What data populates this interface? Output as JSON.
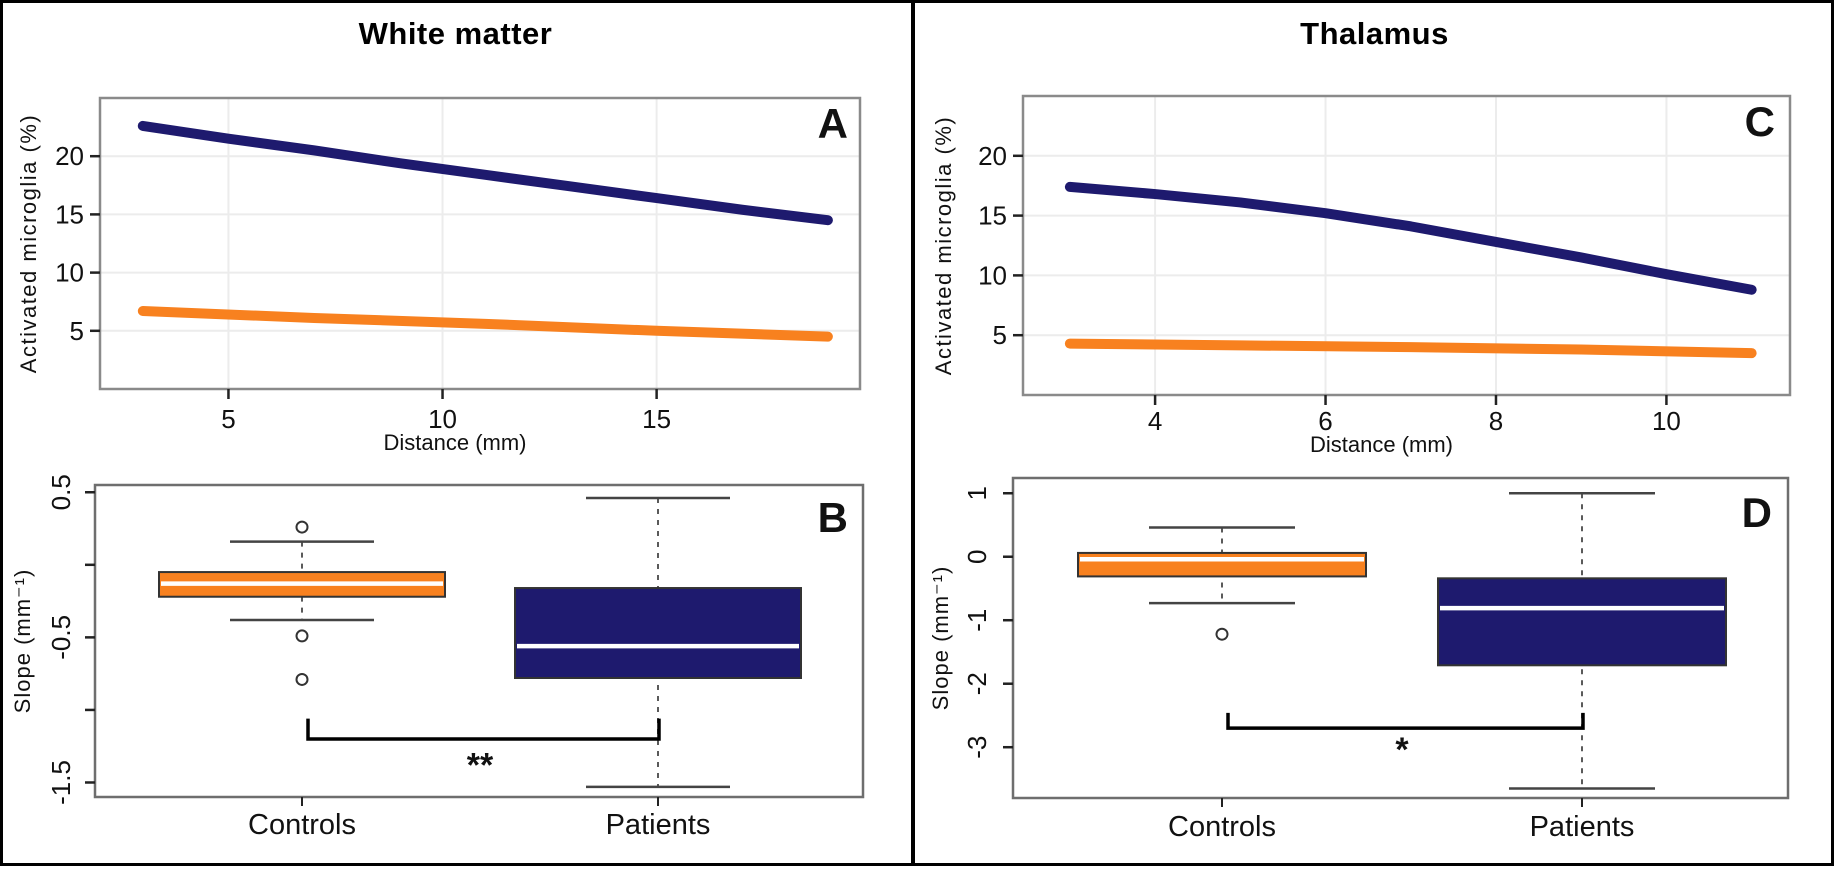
{
  "figure": {
    "columns": [
      {
        "title": "White matter"
      },
      {
        "title": "Thalamus"
      }
    ]
  },
  "chart_data": [
    {
      "id": "A",
      "type": "line",
      "panel_label": "A",
      "column_title": "White matter",
      "xlabel": "Distance (mm)",
      "ylabel": "Activated microglia (%)",
      "xlim": [
        2.0,
        19.75
      ],
      "ylim": [
        0,
        25
      ],
      "xticks": [
        5,
        10,
        15
      ],
      "yticks": [
        5,
        10,
        15,
        20
      ],
      "grid": true,
      "series": [
        {
          "name": "Patients",
          "color": "#1E1A6E",
          "points": [
            [
              3,
              22.6
            ],
            [
              5,
              21.5
            ],
            [
              7,
              20.5
            ],
            [
              9,
              19.4
            ],
            [
              11,
              18.4
            ],
            [
              13,
              17.4
            ],
            [
              15,
              16.4
            ],
            [
              17,
              15.4
            ],
            [
              19,
              14.5
            ]
          ]
        },
        {
          "name": "Controls",
          "color": "#F8811F",
          "points": [
            [
              3,
              6.7
            ],
            [
              7,
              6.1
            ],
            [
              11,
              5.6
            ],
            [
              15,
              5.0
            ],
            [
              19,
              4.5
            ]
          ]
        }
      ]
    },
    {
      "id": "B",
      "type": "box",
      "panel_label": "B",
      "ylabel": "Slope (mm⁻¹)",
      "ylim": [
        -1.6,
        0.55
      ],
      "yticks": [
        {
          "v": 0.5,
          "label": "0.5"
        },
        {
          "v": 0,
          "label": ""
        },
        {
          "v": -0.5,
          "label": "-0.5"
        },
        {
          "v": -1,
          "label": ""
        },
        {
          "v": -1.5,
          "label": "-1.5"
        }
      ],
      "categories": [
        "Controls",
        "Patients"
      ],
      "boxes": [
        {
          "name": "Controls",
          "color": "#F8811F",
          "whisker_low": -0.38,
          "q1": -0.22,
          "median": -0.13,
          "q3": -0.05,
          "whisker_high": 0.16,
          "outliers": [
            0.26,
            -0.49,
            -0.79
          ]
        },
        {
          "name": "Patients",
          "color": "#1E1A6E",
          "whisker_low": -1.53,
          "q1": -0.78,
          "median": -0.56,
          "q3": -0.16,
          "whisker_high": 0.46,
          "outliers": []
        }
      ],
      "significance": {
        "label": "**",
        "bracket_y": -1.2,
        "bracket_tick_y": -1.06,
        "label_y": -1.46
      }
    },
    {
      "id": "C",
      "type": "line",
      "panel_label": "C",
      "column_title": "Thalamus",
      "xlabel": "Distance (mm)",
      "ylabel": "Activated microglia (%)",
      "xlim": [
        2.45,
        11.45
      ],
      "ylim": [
        0,
        25
      ],
      "xticks": [
        4,
        6,
        8,
        10
      ],
      "yticks": [
        5,
        10,
        15,
        20
      ],
      "grid": true,
      "series": [
        {
          "name": "Patients",
          "color": "#1E1A6E",
          "points": [
            [
              3,
              17.4
            ],
            [
              4,
              16.8
            ],
            [
              5,
              16.1
            ],
            [
              6,
              15.2
            ],
            [
              7,
              14.1
            ],
            [
              8,
              12.8
            ],
            [
              9,
              11.5
            ],
            [
              10,
              10.1
            ],
            [
              11,
              8.8
            ]
          ]
        },
        {
          "name": "Controls",
          "color": "#F8811F",
          "points": [
            [
              3,
              4.3
            ],
            [
              5,
              4.15
            ],
            [
              7,
              4.0
            ],
            [
              9,
              3.8
            ],
            [
              11,
              3.5
            ]
          ]
        }
      ]
    },
    {
      "id": "D",
      "type": "box",
      "panel_label": "D",
      "ylabel": "Slope (mm⁻¹)",
      "ylim": [
        -3.8,
        1.24
      ],
      "yticks": [
        {
          "v": 1,
          "label": "1"
        },
        {
          "v": 0,
          "label": "0"
        },
        {
          "v": -1,
          "label": "-1"
        },
        {
          "v": -2,
          "label": "-2"
        },
        {
          "v": -3,
          "label": "-3"
        }
      ],
      "categories": [
        "Controls",
        "Patients"
      ],
      "boxes": [
        {
          "name": "Controls",
          "color": "#F8811F",
          "whisker_low": -0.73,
          "q1": -0.31,
          "median": -0.04,
          "q3": 0.06,
          "whisker_high": 0.46,
          "outliers": [
            -1.22
          ]
        },
        {
          "name": "Patients",
          "color": "#1E1A6E",
          "whisker_low": -3.65,
          "q1": -1.71,
          "median": -0.81,
          "q3": -0.34,
          "whisker_high": 1.0,
          "outliers": []
        }
      ],
      "significance": {
        "label": "*",
        "bracket_y": -2.7,
        "bracket_tick_y": -2.46,
        "label_y": -3.22
      }
    }
  ],
  "style": {
    "grid_color": "#ECECEC",
    "line_border_color": "#8A8A8A",
    "box_border_color": "#6E6E6E",
    "tick_color": "#222222",
    "whisker_color": "#444444",
    "dash_color": "#5A5A5A",
    "median_color": "#FFFFFF",
    "navy": "#1E1A6E",
    "orange": "#F8811F"
  }
}
